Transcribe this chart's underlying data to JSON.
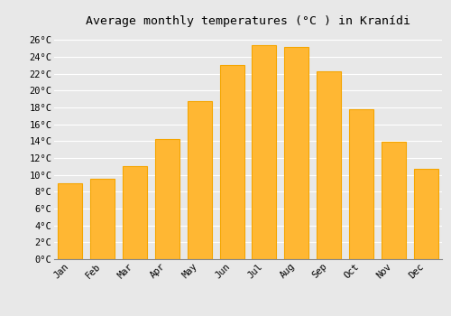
{
  "title": "Average monthly temperatures (°C ) in Kranídi",
  "months": [
    "Jan",
    "Feb",
    "Mar",
    "Apr",
    "May",
    "Jun",
    "Jul",
    "Aug",
    "Sep",
    "Oct",
    "Nov",
    "Dec"
  ],
  "values": [
    9.0,
    9.5,
    11.0,
    14.3,
    18.7,
    23.0,
    25.4,
    25.2,
    22.3,
    17.8,
    13.9,
    10.7
  ],
  "bar_color_inner": "#FFB733",
  "bar_color_edge": "#F5A500",
  "ylim": [
    0,
    27
  ],
  "yticks": [
    0,
    2,
    4,
    6,
    8,
    10,
    12,
    14,
    16,
    18,
    20,
    22,
    24,
    26
  ],
  "background_color": "#e8e8e8",
  "grid_color": "#ffffff",
  "title_fontsize": 9.5,
  "tick_fontsize": 7.5,
  "font_family": "monospace",
  "bar_width": 0.75
}
